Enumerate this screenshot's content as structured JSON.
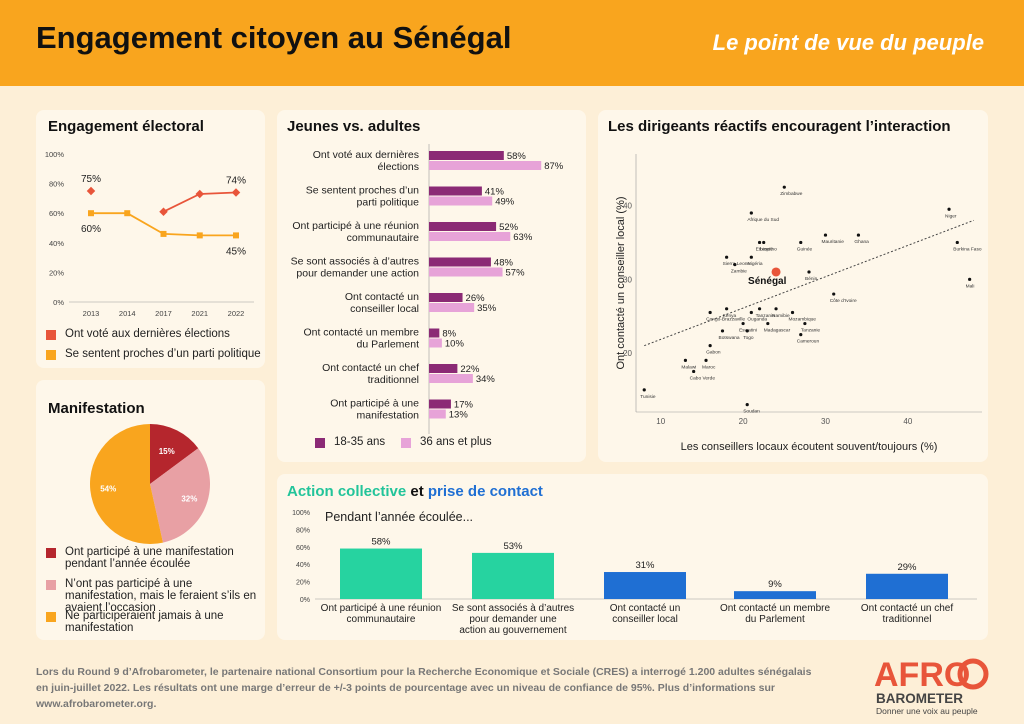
{
  "header": {
    "title": "Engagement citoyen au Sénégal",
    "tagline": "Le point de vue du peuple"
  },
  "colors": {
    "orange_brand": "#f9a51e",
    "red": "#e8553a",
    "dark_purple": "#8b2a75",
    "light_pink": "#e7a3d8",
    "green": "#26d3a0",
    "blue": "#1f6fd3",
    "pie_red": "#b5262d",
    "pie_pink": "#e8a0a4",
    "pie_orange": "#f9a51e"
  },
  "electoral": {
    "title": "Engagement électoral",
    "legend": [
      "Ont voté aux dernières élections",
      "Se sentent proches d’un parti politique"
    ]
  },
  "manif": {
    "title": "Manifestation",
    "legend": [
      "Ont participé à une manifestation pendant l’année écoulée",
      "N’ont pas participé à une manifestation, mais le feraient s’ils en avaient l’occasion",
      "Ne participeraient jamais à une manifestation"
    ]
  },
  "youth": {
    "title": "Jeunes vs. adultes",
    "legend": [
      "18-35 ans",
      "36 ans et plus"
    ]
  },
  "scatter": {
    "title": "Les dirigeants réactifs encouragent l’interaction"
  },
  "action": {
    "title_part1": "Action collective",
    "title_part2": " et ",
    "title_part3": "prise de contact",
    "subtitle": "Pendant l’année écoulée..."
  },
  "footer": {
    "text": "Lors du Round 9 d’Afrobarometer, le partenaire national Consortium pour la Recherche Economique et Sociale (CRES) a interrogé 1.200 adultes sénégalais en juin-juillet 2022. Les résultats ont une marge d’erreur de +/-3 points de pourcentage avec un niveau de confiance de 95%. Plus d’informations sur www.afrobarometer.org.",
    "logo_top": "AFRO",
    "logo_mid": "BAROMETER",
    "logo_tag": "Donner une voix au peuple"
  },
  "chart_data": [
    {
      "id": "electoral",
      "type": "line",
      "x": [
        "2013",
        "2014",
        "2017",
        "2021",
        "2022"
      ],
      "ylim": [
        0,
        100
      ],
      "y_ticks": [
        "0%",
        "20%",
        "40%",
        "60%",
        "80%",
        "100%"
      ],
      "series": [
        {
          "name": "Ont voté aux dernières élections",
          "values": [
            75,
            null,
            61,
            73,
            74
          ],
          "labels": [
            "75%",
            "",
            "",
            "",
            "74%"
          ]
        },
        {
          "name": "Se sentent proches d’un parti politique",
          "values": [
            60,
            60,
            46,
            45,
            45
          ],
          "labels": [
            "60%",
            "",
            "",
            "",
            "45%"
          ]
        }
      ]
    },
    {
      "id": "manifestation",
      "type": "pie",
      "values": [
        15,
        32,
        54
      ],
      "labels": [
        "15%",
        "32%",
        "54%"
      ],
      "categories": [
        "Ont participé à une manifestation pendant l’année écoulée",
        "N’ont pas participé à une manifestation, mais le feraient s’ils en avaient l’occasion",
        "Ne participeraient jamais à une manifestation"
      ]
    },
    {
      "id": "youth",
      "type": "bar",
      "orientation": "horizontal",
      "categories": [
        [
          "Ont voté aux dernières",
          "élections"
        ],
        [
          "Se sentent proches d’un",
          "parti politique"
        ],
        [
          "Ont participé à une réunion",
          "communautaire"
        ],
        [
          "Se sont associés à d’autres",
          "pour demander une action"
        ],
        [
          "Ont contacté un",
          "conseiller local"
        ],
        [
          "Ont contacté un membre",
          "du Parlement"
        ],
        [
          "Ont contacté un chef",
          "traditionnel"
        ],
        [
          "Ont participé à une",
          "manifestation"
        ]
      ],
      "series": [
        {
          "name": "18-35 ans",
          "values": [
            58,
            41,
            52,
            48,
            26,
            8,
            22,
            17
          ],
          "labels": [
            "58%",
            "41%",
            "52%",
            "48%",
            "26%",
            "8%",
            "22%",
            "17%"
          ]
        },
        {
          "name": "36 ans et plus",
          "values": [
            87,
            49,
            63,
            57,
            35,
            10,
            34,
            13
          ],
          "labels": [
            "87%",
            "49%",
            "63%",
            "57%",
            "35%",
            "10%",
            "34%",
            "13%"
          ]
        }
      ]
    },
    {
      "id": "scatter",
      "type": "scatter",
      "xlabel": "Les conseillers locaux écoutent souvent/toujours (%)",
      "ylabel": "Ont contacté un conseiller local (%)",
      "xlim": [
        7,
        49
      ],
      "ylim": [
        12,
        47
      ],
      "x_ticks": [
        10,
        20,
        30,
        40
      ],
      "y_ticks": [
        20,
        30,
        40
      ],
      "trendline": [
        [
          8,
          21
        ],
        [
          48,
          38
        ]
      ],
      "points": [
        {
          "name": "Zimbabwe",
          "x": 25,
          "y": 42.5
        },
        {
          "name": "Afrique du Sud",
          "x": 21,
          "y": 39
        },
        {
          "name": "Niger",
          "x": 45,
          "y": 39.5
        },
        {
          "name": "Mauritanie",
          "x": 30,
          "y": 36
        },
        {
          "name": "Ghana",
          "x": 34,
          "y": 36
        },
        {
          "name": "Guinée",
          "x": 27,
          "y": 35
        },
        {
          "name": "Lesotho",
          "x": 22.5,
          "y": 35
        },
        {
          "name": "Burkina Faso",
          "x": 46,
          "y": 35
        },
        {
          "name": "Ethiopie",
          "x": 22,
          "y": 35
        },
        {
          "name": "Sierra Leone",
          "x": 18,
          "y": 33
        },
        {
          "name": "Nigéria",
          "x": 21,
          "y": 33
        },
        {
          "name": "Bénin",
          "x": 28,
          "y": 31
        },
        {
          "name": "Zambie",
          "x": 19,
          "y": 32
        },
        {
          "name": "Sénégal",
          "x": 24,
          "y": 31
        },
        {
          "name": "Mali",
          "x": 47.5,
          "y": 30
        },
        {
          "name": "Côte d’Ivoire",
          "x": 31,
          "y": 28
        },
        {
          "name": "Kenya",
          "x": 18,
          "y": 26
        },
        {
          "name": "Tanzanie",
          "x": 22,
          "y": 26
        },
        {
          "name": "Namibie",
          "x": 24,
          "y": 26
        },
        {
          "name": "Congo-Brazzaville",
          "x": 16,
          "y": 25.5
        },
        {
          "name": "Ouganda",
          "x": 21,
          "y": 25.5
        },
        {
          "name": "Mozambique",
          "x": 26,
          "y": 25.5
        },
        {
          "name": "Eswatini",
          "x": 20,
          "y": 24
        },
        {
          "name": "Madagascar",
          "x": 23,
          "y": 24
        },
        {
          "name": "Tanzanie",
          "x": 27.5,
          "y": 24
        },
        {
          "name": "Botswana",
          "x": 17.5,
          "y": 23
        },
        {
          "name": "Togo",
          "x": 20.5,
          "y": 23
        },
        {
          "name": "Cameroun",
          "x": 27,
          "y": 22.5
        },
        {
          "name": "Gabon",
          "x": 16,
          "y": 21
        },
        {
          "name": "Malawi",
          "x": 13,
          "y": 19
        },
        {
          "name": "Maroc",
          "x": 15.5,
          "y": 19
        },
        {
          "name": "Cabo Verde",
          "x": 14,
          "y": 17.5
        },
        {
          "name": "Tunisie",
          "x": 8,
          "y": 15
        },
        {
          "name": "Soudan",
          "x": 20.5,
          "y": 13
        }
      ]
    },
    {
      "id": "action",
      "type": "bar",
      "categories": [
        [
          "Ont participé à une réunion",
          "communautaire"
        ],
        [
          "Se sont associés à d’autres",
          "pour demander une",
          "action au gouvernement"
        ],
        [
          "Ont contacté un",
          "conseiller local"
        ],
        [
          "Ont contacté un membre",
          "du Parlement"
        ],
        [
          "Ont contacté un chef",
          "traditionnel"
        ]
      ],
      "values": [
        58,
        53,
        31,
        9,
        29
      ],
      "labels": [
        "58%",
        "53%",
        "31%",
        "9%",
        "29%"
      ],
      "colors": [
        "#26d3a0",
        "#26d3a0",
        "#1f6fd3",
        "#1f6fd3",
        "#1f6fd3"
      ],
      "ylim": [
        0,
        100
      ],
      "y_ticks": [
        "0%",
        "20%",
        "40%",
        "60%",
        "80%",
        "100%"
      ]
    }
  ]
}
